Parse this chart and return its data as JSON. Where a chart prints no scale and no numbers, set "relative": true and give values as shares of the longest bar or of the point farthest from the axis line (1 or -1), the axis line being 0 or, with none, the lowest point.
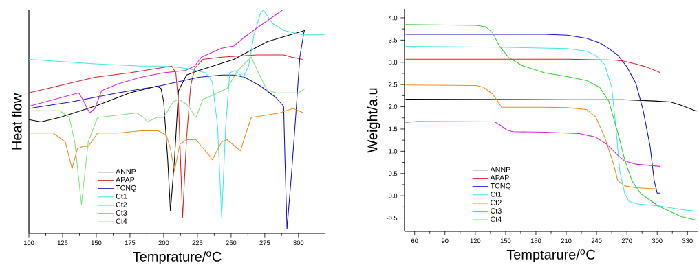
{
  "chart_data": [
    {
      "type": "line",
      "relative": true,
      "xlabel": "Temprature/$^{o}$C",
      "ylabel": "Heat flow",
      "xlim": [
        100,
        320
      ],
      "xticks": [
        100,
        125,
        150,
        175,
        200,
        225,
        250,
        275,
        300
      ],
      "legend": "bottom",
      "tick_labels": "x",
      "series": [
        {
          "name": "ANNP",
          "color": "#000000",
          "x": [
            100,
            109,
            123,
            149,
            175,
            195,
            198,
            200,
            203,
            205,
            208,
            211,
            217,
            226,
            252,
            277,
            305
          ],
          "values": [
            0.51,
            0.5,
            0.52,
            0.57,
            0.63,
            0.66,
            0.65,
            0.59,
            0.33,
            0.1,
            0.33,
            0.64,
            0.71,
            0.73,
            0.78,
            0.86,
            0.91
          ]
        },
        {
          "name": "APAP",
          "color": "#e02020",
          "x": [
            100,
            149,
            175,
            200,
            206,
            209,
            211,
            214,
            217,
            220,
            223,
            229,
            243,
            269,
            289,
            295,
            303
          ],
          "values": [
            0.63,
            0.7,
            0.72,
            null,
            0.75,
            0.72,
            0.58,
            0.07,
            0.43,
            0.66,
            0.74,
            0.78,
            0.79,
            0.8,
            0.8,
            0.79,
            0.78
          ]
        },
        {
          "name": "TCNQ",
          "color": "#1010cc",
          "x": [
            100,
            132,
            166,
            196,
            226,
            243,
            252,
            260,
            272,
            283,
            289,
            290,
            291.5,
            295,
            298,
            301,
            304,
            305
          ],
          "values": [
            0.56,
            0.59,
            0.63,
            0.66,
            0.7,
            0.71,
            0.71,
            0.7,
            0.66,
            0.61,
            0.57,
            0.33,
            0.02,
            0.28,
            0.53,
            0.79,
            0.9,
            0.91
          ]
        },
        {
          "name": "Ct1",
          "color": "#40e8e8",
          "x": [
            100,
            149,
            183,
            200,
            217,
            231,
            236,
            240,
            243,
            246,
            249,
            253,
            259,
            263,
            267,
            272,
            274,
            281,
            289,
            303,
            313,
            320
          ],
          "values": [
            0.78,
            0.76,
            0.75,
            0.75,
            0.74,
            0.72,
            0.68,
            0.48,
            0.07,
            0.48,
            0.72,
            0.73,
            0.7,
            0.75,
            0.89,
            0.99,
            1.0,
            0.94,
            0.91,
            0.89,
            0.89,
            0.89
          ]
        },
        {
          "name": "Ct2",
          "color": "#f08c1e",
          "x": [
            100,
            118,
            127,
            132,
            136,
            140,
            144,
            151,
            166,
            183,
            196,
            202,
            205,
            208,
            212,
            217,
            224,
            235,
            236,
            243,
            247,
            257,
            260,
            265,
            276,
            286,
            296,
            304
          ],
          "values": [
            0.45,
            0.45,
            0.41,
            0.29,
            0.38,
            0.39,
            0.39,
            0.45,
            0.45,
            0.46,
            0.46,
            0.44,
            0.38,
            0.28,
            0.4,
            0.42,
            0.42,
            0.34,
            0.33,
            0.41,
            0.42,
            0.37,
            0.43,
            0.52,
            0.53,
            0.54,
            0.56,
            0.54
          ]
        },
        {
          "name": "Ct3",
          "color": "#e020e0",
          "x": [
            100,
            137,
            140,
            145,
            149,
            154,
            166,
            183,
            200,
            216,
            223,
            228,
            243,
            252,
            260,
            269,
            288
          ],
          "values": [
            0.57,
            0.63,
            0.6,
            0.54,
            0.56,
            0.64,
            0.67,
            0.7,
            0.72,
            0.73,
            0.75,
            0.79,
            0.83,
            0.84,
            0.88,
            0.92,
            1.0
          ]
        },
        {
          "name": "Ct4",
          "color": "#80e080",
          "x": [
            100,
            123,
            130,
            134,
            139,
            144,
            151,
            166,
            180,
            185,
            188,
            195,
            200,
            207,
            211,
            217,
            224,
            229,
            240,
            247,
            255,
            265,
            271,
            277,
            284,
            300,
            305
          ],
          "values": [
            0.55,
            0.55,
            0.52,
            0.41,
            0.13,
            0.41,
            0.52,
            0.53,
            0.54,
            0.52,
            0.5,
            0.52,
            0.52,
            0.59,
            0.6,
            0.58,
            0.52,
            0.6,
            0.63,
            0.65,
            0.73,
            0.79,
            0.71,
            0.64,
            0.63,
            0.63,
            0.65
          ]
        }
      ]
    },
    {
      "type": "line",
      "xlabel": "Temptarure/$^{o}$C",
      "ylabel": "Weight/a.u",
      "xlim": [
        50,
        340
      ],
      "ylim": [
        -0.8,
        4.2
      ],
      "xticks": [
        60,
        90,
        120,
        150,
        180,
        210,
        240,
        270,
        300,
        330
      ],
      "yticks": [
        {
          "value": -0.5,
          "label": "-0.5"
        },
        {
          "value": 0,
          "label": "0.0"
        },
        {
          "value": 0.5,
          "label": "0.5"
        },
        {
          "value": 1,
          "label": "1.0"
        },
        {
          "value": 1.5,
          "label": "1.5"
        },
        {
          "value": 2,
          "label": "2.0"
        },
        {
          "value": 2.5,
          "label": "2.5"
        },
        {
          "value": 3,
          "label": "3.0"
        },
        {
          "value": 3.5,
          "label": "3.5"
        },
        {
          "value": 4,
          "label": "4.0"
        }
      ],
      "legend": "bottom",
      "series": [
        {
          "name": "ANNP",
          "color": "#000000",
          "x": [
            51,
            211,
            266,
            297,
            313,
            324,
            339
          ],
          "values": [
            2.17,
            2.16,
            2.16,
            2.13,
            2.11,
            2.03,
            1.9
          ]
        },
        {
          "name": "APAP",
          "color": "#e02020",
          "x": [
            51,
            211,
            257,
            266,
            279,
            290,
            303
          ],
          "values": [
            3.07,
            3.07,
            3.05,
            3.03,
            2.96,
            2.89,
            2.77
          ]
        },
        {
          "name": "TCNQ",
          "color": "#1010cc",
          "x": [
            51,
            189,
            211,
            230,
            243,
            252,
            261,
            270,
            279,
            286,
            293,
            297,
            300,
            303
          ],
          "values": [
            3.63,
            3.63,
            3.61,
            3.54,
            3.44,
            3.31,
            3.16,
            2.9,
            2.52,
            1.93,
            1.11,
            0.34,
            0.06,
            0.06
          ]
        },
        {
          "name": "Ct1",
          "color": "#40e8e8",
          "x": [
            51,
            144,
            211,
            230,
            239,
            248,
            255,
            259,
            263,
            268,
            272,
            279,
            302,
            324,
            339
          ],
          "values": [
            3.36,
            3.34,
            3.31,
            3.25,
            3.16,
            2.95,
            2.44,
            1.57,
            0.55,
            0.04,
            -0.12,
            -0.18,
            -0.23,
            -0.31,
            -0.35
          ]
        },
        {
          "name": "Ct2",
          "color": "#f08c1e",
          "x": [
            51,
            121,
            128,
            137,
            142,
            146,
            189,
            211,
            230,
            239,
            248,
            257,
            261,
            268,
            279,
            303
          ],
          "values": [
            2.49,
            2.48,
            2.44,
            2.29,
            2.13,
            1.99,
            1.99,
            1.98,
            1.94,
            1.78,
            1.32,
            0.7,
            0.34,
            0.22,
            0.18,
            0.15
          ]
        },
        {
          "name": "Ct3",
          "color": "#e020e0",
          "x": [
            51,
            63,
            139,
            144,
            151,
            157,
            189,
            223,
            239,
            250,
            261,
            268,
            279,
            303
          ],
          "values": [
            1.65,
            1.67,
            1.66,
            1.6,
            1.48,
            1.44,
            1.43,
            1.4,
            1.32,
            1.16,
            0.91,
            0.78,
            0.71,
            0.66
          ]
        },
        {
          "name": "Ct4",
          "color": "#30d030",
          "x": [
            51,
            121,
            130,
            137,
            144,
            153,
            166,
            189,
            211,
            230,
            243,
            252,
            261,
            268,
            275,
            284,
            302,
            324,
            339
          ],
          "values": [
            3.85,
            3.83,
            3.8,
            3.67,
            3.36,
            3.11,
            2.93,
            2.76,
            2.68,
            2.59,
            2.44,
            2.13,
            1.42,
            0.8,
            0.34,
            0.04,
            -0.24,
            -0.47,
            -0.55
          ]
        }
      ]
    }
  ]
}
